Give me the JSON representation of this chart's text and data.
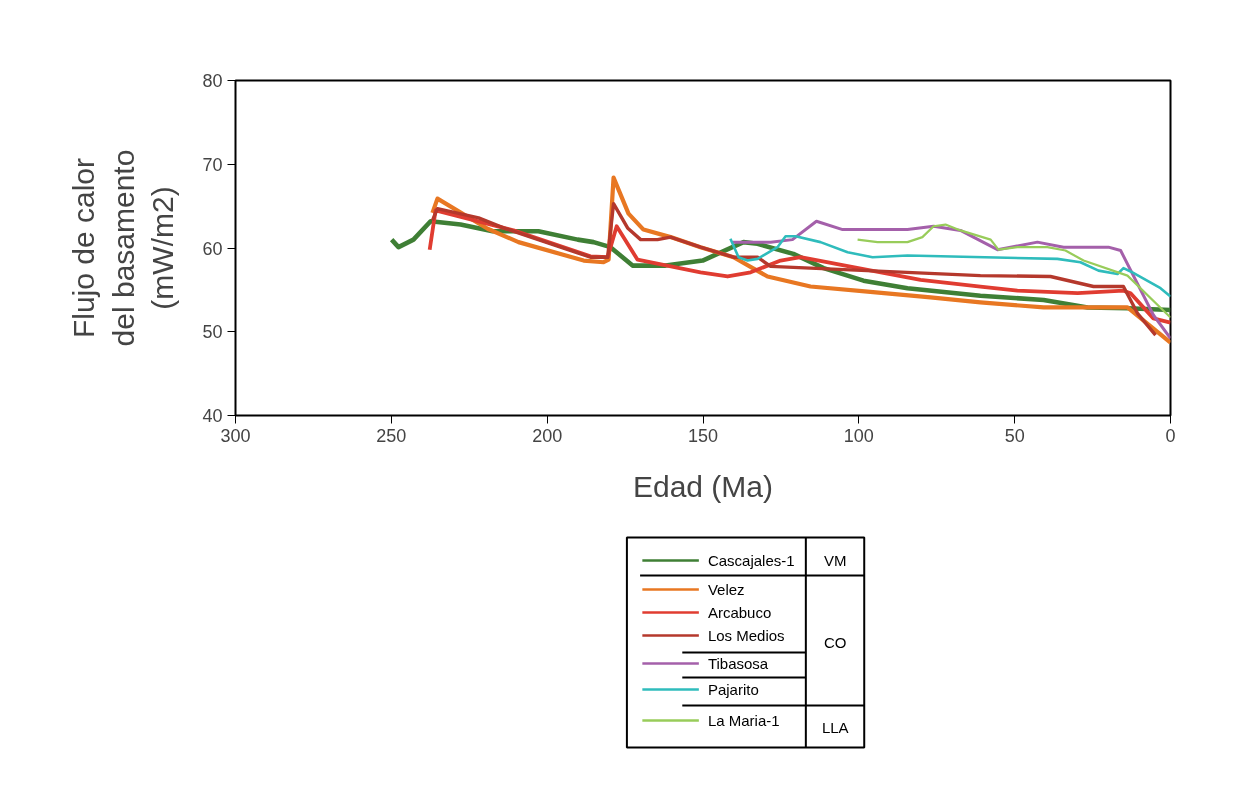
{
  "chart_data": {
    "type": "line",
    "xlabel": "Edad (Ma)",
    "ylabel": "Flujo de calor\ndel basamento\n(mW/m2)",
    "xlim": [
      300,
      0
    ],
    "xticks": [
      300,
      250,
      200,
      150,
      100,
      50,
      0
    ],
    "ylim": [
      40,
      80
    ],
    "yticks": [
      40,
      50,
      60,
      70,
      80
    ],
    "grid": false,
    "legend": "bottom",
    "marker": "none",
    "line_style": "solid",
    "annotations": [
      "VM",
      "CO",
      "LLA"
    ],
    "series": [
      {
        "name": "Cascajales-1",
        "color": "#3f7f35",
        "x": [
          249.9,
          247.7,
          242.9,
          237.4,
          227.8,
          217.5,
          202.8,
          190.2,
          185.1,
          179.7,
          172.6,
          162.0,
          150.1,
          137.0,
          132.5,
          121.0,
          111.3,
          98.5,
          84.4,
          61.0,
          40.7,
          26.6,
          13.8,
          0
        ],
        "values": [
          61.0,
          60.1,
          61.0,
          63.2,
          62.8,
          62.0,
          62.0,
          61.0,
          60.7,
          60.1,
          57.9,
          57.9,
          58.5,
          60.7,
          60.5,
          59.3,
          57.6,
          56.1,
          55.2,
          54.3,
          53.8,
          52.9,
          52.8,
          52.6
        ]
      },
      {
        "name": "Velez",
        "color": "#e87722",
        "x": [
          236.8,
          235.2,
          219.1,
          209.2,
          188.3,
          181.9,
          180.3,
          178.7,
          173.9,
          169.1,
          160.4,
          150.8,
          140.2,
          129.3,
          115.5,
          97.2,
          77.0,
          61.0,
          40.7,
          13.8,
          0
        ],
        "values": [
          64.2,
          65.9,
          62.3,
          60.7,
          58.5,
          58.3,
          58.6,
          68.4,
          64.1,
          62.2,
          61.3,
          60.1,
          58.9,
          56.6,
          55.4,
          54.8,
          54.1,
          53.5,
          52.9,
          52.9,
          48.7
        ]
      },
      {
        "name": "Arcabuco",
        "color": "#e03c31",
        "x": [
          237.7,
          235.8,
          210.8,
          186.1,
          180.6,
          177.7,
          171.0,
          150.8,
          142.1,
          134.7,
          125.1,
          118.7,
          97.2,
          80.2,
          61.0,
          49.1,
          29.8,
          15.1,
          12.8,
          5.5,
          0
        ],
        "values": [
          59.8,
          64.5,
          62.1,
          59.0,
          58.9,
          62.6,
          58.6,
          57.1,
          56.6,
          57.1,
          58.5,
          58.9,
          57.4,
          56.2,
          55.4,
          54.9,
          54.6,
          54.9,
          54.6,
          51.6,
          51.1
        ]
      },
      {
        "name": "Los Medios",
        "color": "#b5382c",
        "x": [
          236.8,
          235.2,
          222.0,
          214.0,
          186.1,
          180.6,
          178.7,
          174.2,
          170.0,
          164.6,
          160.4,
          150.8,
          140.2,
          132.5,
          128.3,
          61.0,
          38.5,
          24.7,
          15.1,
          10.6,
          4.8
        ],
        "values": [
          63.3,
          64.7,
          63.6,
          62.4,
          58.9,
          58.9,
          65.3,
          62.4,
          61.0,
          61.0,
          61.3,
          60.1,
          58.9,
          58.9,
          57.8,
          56.7,
          56.6,
          55.4,
          55.4,
          52.2,
          49.6
        ]
      },
      {
        "name": "Tibasosa",
        "color": "#a460aa",
        "x": [
          140.5,
          128.3,
          121.3,
          113.6,
          105.2,
          84.4,
          76.0,
          67.4,
          55.5,
          42.7,
          34.3,
          19.9,
          16.0,
          5.5,
          0
        ],
        "values": [
          60.7,
          60.7,
          61.0,
          63.2,
          62.2,
          62.2,
          62.6,
          62.1,
          59.8,
          60.7,
          60.1,
          60.1,
          59.7,
          52.0,
          49.2
        ]
      },
      {
        "name": "Pajarito",
        "color": "#2fbcbc",
        "x": [
          141.2,
          138.6,
          135.7,
          132.5,
          126.1,
          123.5,
          120.3,
          112.3,
          103.6,
          95.6,
          84.4,
          36.3,
          28.9,
          23.1,
          17.0,
          15.1,
          12.8,
          3.2,
          0
        ],
        "values": [
          61.1,
          58.9,
          58.5,
          58.7,
          60.1,
          61.4,
          61.4,
          60.7,
          59.5,
          58.9,
          59.1,
          58.7,
          58.3,
          57.3,
          56.9,
          57.6,
          57.2,
          55.2,
          54.2
        ]
      },
      {
        "name": "La Maria-1",
        "color": "#98cc5a",
        "x": [
          100.4,
          94.0,
          84.4,
          79.6,
          76.0,
          72.2,
          67.4,
          57.7,
          55.2,
          49.1,
          39.5,
          33.7,
          27.9,
          13.8,
          0
        ],
        "values": [
          61.0,
          60.7,
          60.7,
          61.3,
          62.6,
          62.8,
          62.1,
          61.0,
          59.8,
          60.1,
          60.1,
          59.7,
          58.5,
          56.7,
          51.7
        ]
      }
    ]
  }
}
